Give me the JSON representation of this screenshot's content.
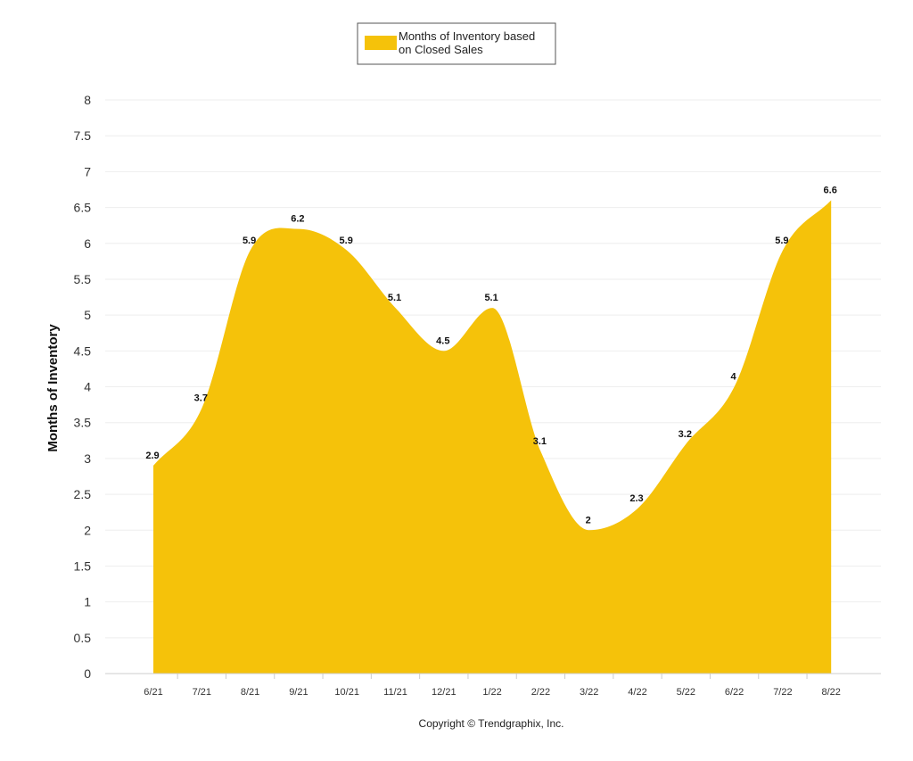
{
  "chart_data": {
    "type": "area",
    "categories": [
      "6/21",
      "7/21",
      "8/21",
      "9/21",
      "10/21",
      "11/21",
      "12/21",
      "1/22",
      "2/22",
      "3/22",
      "4/22",
      "5/22",
      "6/22",
      "7/22",
      "8/22"
    ],
    "series": [
      {
        "name": "Months of Inventory based on Closed Sales",
        "values": [
          2.9,
          3.7,
          5.9,
          6.2,
          5.9,
          5.1,
          4.5,
          5.1,
          3.1,
          2,
          2.3,
          3.2,
          4,
          5.9,
          6.6
        ],
        "labels": [
          "2.9",
          "3.7",
          "5.9",
          "6.2",
          "5.9",
          "5.1",
          "4.5",
          "5.1",
          "3.1",
          "2",
          "2.3",
          "3.2",
          "4",
          "5.9",
          "6.6"
        ]
      }
    ],
    "legend_line1": "Months of Inventory based",
    "legend_line2": "on Closed Sales",
    "ylabel": "Months of Inventory",
    "ylim": [
      0,
      8
    ],
    "yticks": [
      "0",
      "0.5",
      "1",
      "1.5",
      "2",
      "2.5",
      "3",
      "3.5",
      "4",
      "4.5",
      "5",
      "5.5",
      "6",
      "6.5",
      "7",
      "7.5",
      "8"
    ],
    "grid": true,
    "legend_position": "top-center"
  },
  "colors": {
    "fill": "#F5C20A"
  },
  "footer": {
    "copyright": "Copyright © Trendgraphix, Inc."
  }
}
